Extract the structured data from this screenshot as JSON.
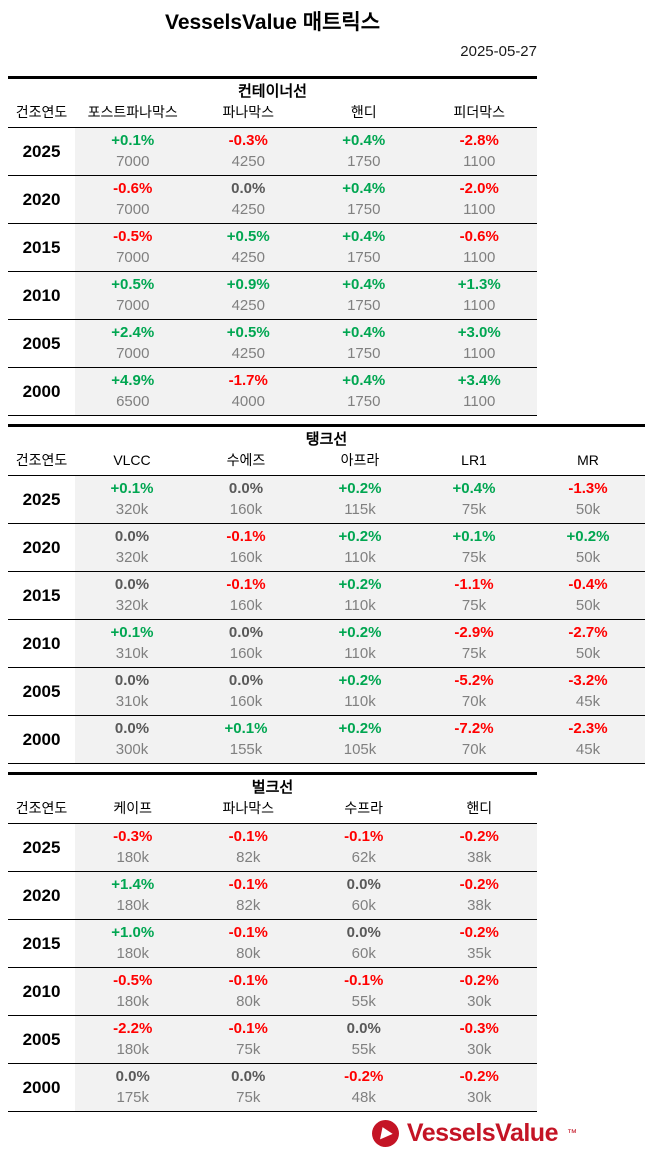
{
  "page": {
    "title": "VesselsValue 매트릭스",
    "date": "2025-05-27"
  },
  "colors": {
    "up": "#00a651",
    "down": "#ff0000",
    "flat": "#595959",
    "value_gray": "#808080",
    "row_bg": "#f2f2f2",
    "brand_red": "#c41425"
  },
  "year_header": "건조연도",
  "tables": [
    {
      "id": "container-ships",
      "title": "컨테이너선",
      "columns": [
        "포스트파나막스",
        "파나막스",
        "핸디",
        "피더막스"
      ],
      "rows": [
        {
          "year": "2025",
          "cells": [
            {
              "pct": "+0.1%",
              "trend": "up",
              "value": "7000"
            },
            {
              "pct": "-0.3%",
              "trend": "down",
              "value": "4250"
            },
            {
              "pct": "+0.4%",
              "trend": "up",
              "value": "1750"
            },
            {
              "pct": "-2.8%",
              "trend": "down",
              "value": "1100"
            }
          ]
        },
        {
          "year": "2020",
          "cells": [
            {
              "pct": "-0.6%",
              "trend": "down",
              "value": "7000"
            },
            {
              "pct": "0.0%",
              "trend": "flat",
              "value": "4250"
            },
            {
              "pct": "+0.4%",
              "trend": "up",
              "value": "1750"
            },
            {
              "pct": "-2.0%",
              "trend": "down",
              "value": "1100"
            }
          ]
        },
        {
          "year": "2015",
          "cells": [
            {
              "pct": "-0.5%",
              "trend": "down",
              "value": "7000"
            },
            {
              "pct": "+0.5%",
              "trend": "up",
              "value": "4250"
            },
            {
              "pct": "+0.4%",
              "trend": "up",
              "value": "1750"
            },
            {
              "pct": "-0.6%",
              "trend": "down",
              "value": "1100"
            }
          ]
        },
        {
          "year": "2010",
          "cells": [
            {
              "pct": "+0.5%",
              "trend": "up",
              "value": "7000"
            },
            {
              "pct": "+0.9%",
              "trend": "up",
              "value": "4250"
            },
            {
              "pct": "+0.4%",
              "trend": "up",
              "value": "1750"
            },
            {
              "pct": "+1.3%",
              "trend": "up",
              "value": "1100"
            }
          ]
        },
        {
          "year": "2005",
          "cells": [
            {
              "pct": "+2.4%",
              "trend": "up",
              "value": "7000"
            },
            {
              "pct": "+0.5%",
              "trend": "up",
              "value": "4250"
            },
            {
              "pct": "+0.4%",
              "trend": "up",
              "value": "1750"
            },
            {
              "pct": "+3.0%",
              "trend": "up",
              "value": "1100"
            }
          ]
        },
        {
          "year": "2000",
          "cells": [
            {
              "pct": "+4.9%",
              "trend": "up",
              "value": "6500"
            },
            {
              "pct": "-1.7%",
              "trend": "down",
              "value": "4000"
            },
            {
              "pct": "+0.4%",
              "trend": "up",
              "value": "1750"
            },
            {
              "pct": "+3.4%",
              "trend": "up",
              "value": "1100"
            }
          ]
        }
      ]
    },
    {
      "id": "tankers",
      "title": "탱크선",
      "columns": [
        "VLCC",
        "수에즈",
        "아프라",
        "LR1",
        "MR"
      ],
      "rows": [
        {
          "year": "2025",
          "cells": [
            {
              "pct": "+0.1%",
              "trend": "up",
              "value": "320k"
            },
            {
              "pct": "0.0%",
              "trend": "flat",
              "value": "160k"
            },
            {
              "pct": "+0.2%",
              "trend": "up",
              "value": "115k"
            },
            {
              "pct": "+0.4%",
              "trend": "up",
              "value": "75k"
            },
            {
              "pct": "-1.3%",
              "trend": "down",
              "value": "50k"
            }
          ]
        },
        {
          "year": "2020",
          "cells": [
            {
              "pct": "0.0%",
              "trend": "flat",
              "value": "320k"
            },
            {
              "pct": "-0.1%",
              "trend": "down",
              "value": "160k"
            },
            {
              "pct": "+0.2%",
              "trend": "up",
              "value": "110k"
            },
            {
              "pct": "+0.1%",
              "trend": "up",
              "value": "75k"
            },
            {
              "pct": "+0.2%",
              "trend": "up",
              "value": "50k"
            }
          ]
        },
        {
          "year": "2015",
          "cells": [
            {
              "pct": "0.0%",
              "trend": "flat",
              "value": "320k"
            },
            {
              "pct": "-0.1%",
              "trend": "down",
              "value": "160k"
            },
            {
              "pct": "+0.2%",
              "trend": "up",
              "value": "110k"
            },
            {
              "pct": "-1.1%",
              "trend": "down",
              "value": "75k"
            },
            {
              "pct": "-0.4%",
              "trend": "down",
              "value": "50k"
            }
          ]
        },
        {
          "year": "2010",
          "cells": [
            {
              "pct": "+0.1%",
              "trend": "up",
              "value": "310k"
            },
            {
              "pct": "0.0%",
              "trend": "flat",
              "value": "160k"
            },
            {
              "pct": "+0.2%",
              "trend": "up",
              "value": "110k"
            },
            {
              "pct": "-2.9%",
              "trend": "down",
              "value": "75k"
            },
            {
              "pct": "-2.7%",
              "trend": "down",
              "value": "50k"
            }
          ]
        },
        {
          "year": "2005",
          "cells": [
            {
              "pct": "0.0%",
              "trend": "flat",
              "value": "310k"
            },
            {
              "pct": "0.0%",
              "trend": "flat",
              "value": "160k"
            },
            {
              "pct": "+0.2%",
              "trend": "up",
              "value": "110k"
            },
            {
              "pct": "-5.2%",
              "trend": "down",
              "value": "70k"
            },
            {
              "pct": "-3.2%",
              "trend": "down",
              "value": "45k"
            }
          ]
        },
        {
          "year": "2000",
          "cells": [
            {
              "pct": "0.0%",
              "trend": "flat",
              "value": "300k"
            },
            {
              "pct": "+0.1%",
              "trend": "up",
              "value": "155k"
            },
            {
              "pct": "+0.2%",
              "trend": "up",
              "value": "105k"
            },
            {
              "pct": "-7.2%",
              "trend": "down",
              "value": "70k"
            },
            {
              "pct": "-2.3%",
              "trend": "down",
              "value": "45k"
            }
          ]
        }
      ]
    },
    {
      "id": "bulkers",
      "title": "벌크선",
      "columns": [
        "케이프",
        "파나막스",
        "수프라",
        "핸디"
      ],
      "rows": [
        {
          "year": "2025",
          "cells": [
            {
              "pct": "-0.3%",
              "trend": "down",
              "value": "180k"
            },
            {
              "pct": "-0.1%",
              "trend": "down",
              "value": "82k"
            },
            {
              "pct": "-0.1%",
              "trend": "down",
              "value": "62k"
            },
            {
              "pct": "-0.2%",
              "trend": "down",
              "value": "38k"
            }
          ]
        },
        {
          "year": "2020",
          "cells": [
            {
              "pct": "+1.4%",
              "trend": "up",
              "value": "180k"
            },
            {
              "pct": "-0.1%",
              "trend": "down",
              "value": "82k"
            },
            {
              "pct": "0.0%",
              "trend": "flat",
              "value": "60k"
            },
            {
              "pct": "-0.2%",
              "trend": "down",
              "value": "38k"
            }
          ]
        },
        {
          "year": "2015",
          "cells": [
            {
              "pct": "+1.0%",
              "trend": "up",
              "value": "180k"
            },
            {
              "pct": "-0.1%",
              "trend": "down",
              "value": "80k"
            },
            {
              "pct": "0.0%",
              "trend": "flat",
              "value": "60k"
            },
            {
              "pct": "-0.2%",
              "trend": "down",
              "value": "35k"
            }
          ]
        },
        {
          "year": "2010",
          "cells": [
            {
              "pct": "-0.5%",
              "trend": "down",
              "value": "180k"
            },
            {
              "pct": "-0.1%",
              "trend": "down",
              "value": "80k"
            },
            {
              "pct": "-0.1%",
              "trend": "down",
              "value": "55k"
            },
            {
              "pct": "-0.2%",
              "trend": "down",
              "value": "30k"
            }
          ]
        },
        {
          "year": "2005",
          "cells": [
            {
              "pct": "-2.2%",
              "trend": "down",
              "value": "180k"
            },
            {
              "pct": "-0.1%",
              "trend": "down",
              "value": "75k"
            },
            {
              "pct": "0.0%",
              "trend": "flat",
              "value": "55k"
            },
            {
              "pct": "-0.3%",
              "trend": "down",
              "value": "30k"
            }
          ]
        },
        {
          "year": "2000",
          "cells": [
            {
              "pct": "0.0%",
              "trend": "flat",
              "value": "175k"
            },
            {
              "pct": "0.0%",
              "trend": "flat",
              "value": "75k"
            },
            {
              "pct": "-0.2%",
              "trend": "down",
              "value": "48k"
            },
            {
              "pct": "-0.2%",
              "trend": "down",
              "value": "30k"
            }
          ]
        }
      ]
    }
  ],
  "footer": {
    "brand": "VesselsValue",
    "tm": "™"
  }
}
